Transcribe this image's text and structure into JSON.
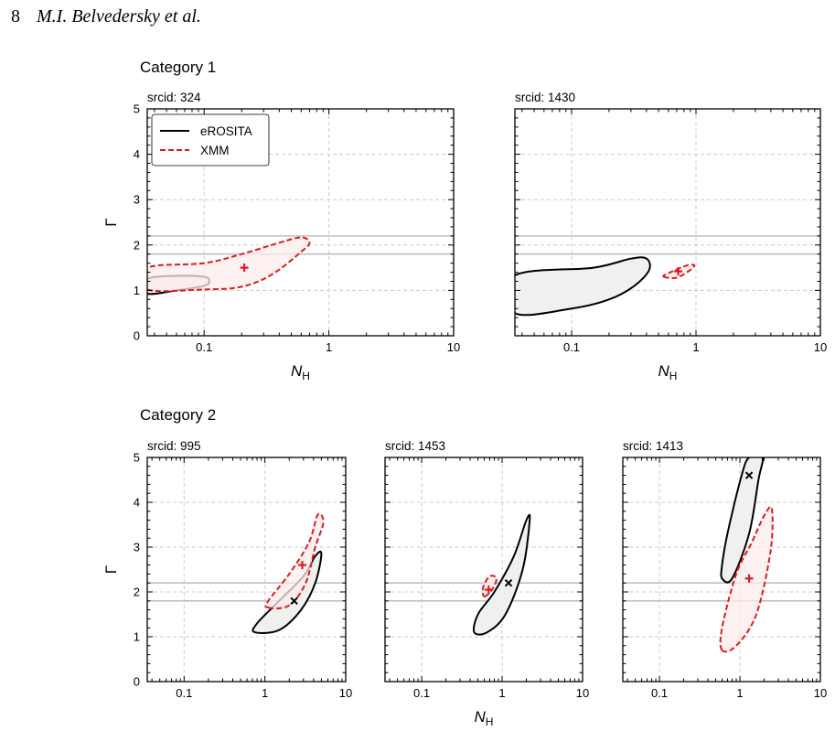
{
  "header": {
    "page_number": "8",
    "authors": "M.I. Belvedersky et al."
  },
  "categories": [
    {
      "title": "Category 1"
    },
    {
      "title": "Category 2"
    }
  ],
  "colors": {
    "erosita": "#000000",
    "erosita_fill": "#f0f0f0",
    "xmm": "#dd1c1c",
    "xmm_fill": "#fdecec",
    "reference_lines": "#c0c0c0",
    "grid": "#cccccc"
  },
  "chart_data": [
    {
      "type": "contour",
      "category": "Category 1",
      "title": "srcid: 324",
      "xlabel": "N",
      "xlabel_sub": "H",
      "ylabel": "Γ",
      "xscale": "log",
      "xlim": [
        0.035,
        10
      ],
      "ylim": [
        0,
        5
      ],
      "xticks": [
        0.1,
        1,
        10
      ],
      "xtick_labels": [
        "0.1",
        "1",
        "10"
      ],
      "yticks": [
        0,
        1,
        2,
        3,
        4,
        5
      ],
      "ytick_labels": [
        "0",
        "1",
        "2",
        "3",
        "4",
        "5"
      ],
      "grid": true,
      "legend": {
        "placement": "top-left",
        "entries": [
          "eROSITA",
          "XMM"
        ]
      },
      "reference_lines_y": [
        1.8,
        2.2
      ],
      "series": [
        {
          "name": "eROSITA",
          "style": "solid",
          "contour": [
            [
              0.035,
              0.93
            ],
            [
              0.06,
              1.0
            ],
            [
              0.1,
              1.1
            ],
            [
              0.11,
              1.2
            ],
            [
              0.1,
              1.3
            ],
            [
              0.06,
              1.32
            ],
            [
              0.035,
              1.25
            ]
          ],
          "best_fit": null
        },
        {
          "name": "XMM",
          "style": "dashed",
          "contour": [
            [
              0.035,
              1.02
            ],
            [
              0.1,
              1.02
            ],
            [
              0.2,
              1.08
            ],
            [
              0.35,
              1.35
            ],
            [
              0.6,
              1.85
            ],
            [
              0.7,
              2.05
            ],
            [
              0.6,
              2.17
            ],
            [
              0.4,
              2.05
            ],
            [
              0.2,
              1.8
            ],
            [
              0.1,
              1.6
            ],
            [
              0.035,
              1.5
            ]
          ],
          "best_fit": [
            0.21,
            1.5
          ]
        }
      ]
    },
    {
      "type": "contour",
      "category": "Category 1",
      "title": "srcid: 1430",
      "xlabel": "N",
      "xlabel_sub": "H",
      "ylabel": "",
      "xscale": "log",
      "xlim": [
        0.035,
        10
      ],
      "ylim": [
        0,
        5
      ],
      "xticks": [
        0.1,
        1,
        10
      ],
      "xtick_labels": [
        "0.1",
        "1",
        "10"
      ],
      "yticks": [
        0,
        1,
        2,
        3,
        4,
        5
      ],
      "ytick_labels": [],
      "grid": true,
      "reference_lines_y": [
        1.8,
        2.2
      ],
      "series": [
        {
          "name": "eROSITA",
          "style": "solid",
          "contour": [
            [
              0.035,
              0.5
            ],
            [
              0.1,
              0.6
            ],
            [
              0.2,
              0.8
            ],
            [
              0.32,
              1.1
            ],
            [
              0.42,
              1.45
            ],
            [
              0.4,
              1.7
            ],
            [
              0.3,
              1.7
            ],
            [
              0.15,
              1.5
            ],
            [
              0.035,
              1.33
            ]
          ],
          "best_fit": null
        },
        {
          "name": "XMM",
          "style": "dashed",
          "contour": [
            [
              0.55,
              1.3
            ],
            [
              0.7,
              1.28
            ],
            [
              0.9,
              1.45
            ],
            [
              0.97,
              1.55
            ],
            [
              0.85,
              1.55
            ],
            [
              0.6,
              1.38
            ]
          ],
          "best_fit": [
            0.72,
            1.42
          ]
        }
      ]
    },
    {
      "type": "contour",
      "category": "Category 2",
      "title": "srcid: 995",
      "xlabel": "",
      "xlabel_sub": "",
      "ylabel": "Γ",
      "xscale": "log",
      "xlim": [
        0.035,
        10
      ],
      "ylim": [
        0,
        5
      ],
      "xticks": [
        0.1,
        1,
        10
      ],
      "xtick_labels": [
        "0.1",
        "1",
        "10"
      ],
      "yticks": [
        0,
        1,
        2,
        3,
        4,
        5
      ],
      "ytick_labels": [
        "0",
        "1",
        "2",
        "3",
        "4",
        "5"
      ],
      "grid": true,
      "reference_lines_y": [
        1.8,
        2.2
      ],
      "series": [
        {
          "name": "eROSITA",
          "style": "solid",
          "contour": [
            [
              0.75,
              1.1
            ],
            [
              1.5,
              1.15
            ],
            [
              2.8,
              1.6
            ],
            [
              4.2,
              2.2
            ],
            [
              5.0,
              2.85
            ],
            [
              4.2,
              2.8
            ],
            [
              3.0,
              2.35
            ],
            [
              1.5,
              1.8
            ],
            [
              0.8,
              1.3
            ]
          ],
          "best_fit": [
            2.3,
            1.8
          ]
        },
        {
          "name": "XMM",
          "style": "dashed",
          "contour": [
            [
              1.1,
              1.65
            ],
            [
              2.0,
              1.7
            ],
            [
              3.2,
              2.2
            ],
            [
              4.2,
              3.0
            ],
            [
              5.3,
              3.55
            ],
            [
              4.5,
              3.72
            ],
            [
              3.5,
              3.1
            ],
            [
              2.0,
              2.4
            ],
            [
              1.1,
              1.8
            ]
          ],
          "best_fit": [
            2.9,
            2.6
          ]
        }
      ]
    },
    {
      "type": "contour",
      "category": "Category 2",
      "title": "srcid: 1453",
      "xlabel": "N",
      "xlabel_sub": "H",
      "ylabel": "",
      "xscale": "log",
      "xlim": [
        0.035,
        10
      ],
      "ylim": [
        0,
        5
      ],
      "xticks": [
        0.1,
        1,
        10
      ],
      "xtick_labels": [
        "0.1",
        "1",
        "10"
      ],
      "yticks": [
        0,
        1,
        2,
        3,
        4,
        5
      ],
      "ytick_labels": [],
      "grid": true,
      "reference_lines_y": [
        1.8,
        2.2
      ],
      "series": [
        {
          "name": "eROSITA",
          "style": "solid",
          "contour": [
            [
              0.45,
              1.1
            ],
            [
              0.65,
              1.1
            ],
            [
              1.1,
              1.5
            ],
            [
              1.8,
              2.5
            ],
            [
              2.2,
              3.6
            ],
            [
              2.0,
              3.6
            ],
            [
              1.4,
              2.8
            ],
            [
              0.8,
              2.0
            ],
            [
              0.5,
              1.5
            ]
          ],
          "best_fit": [
            1.2,
            2.2
          ]
        },
        {
          "name": "XMM",
          "style": "dashed",
          "contour": [
            [
              0.6,
              1.9
            ],
            [
              0.75,
              2.05
            ],
            [
              0.85,
              2.3
            ],
            [
              0.7,
              2.35
            ],
            [
              0.58,
              2.1
            ]
          ],
          "best_fit": [
            0.68,
            2.05
          ]
        }
      ]
    },
    {
      "type": "contour",
      "category": "Category 2",
      "title": "srcid: 1413",
      "xlabel": "",
      "xlabel_sub": "",
      "ylabel": "",
      "xscale": "log",
      "xlim": [
        0.035,
        10
      ],
      "ylim": [
        0,
        5
      ],
      "xticks": [
        0.1,
        1,
        10
      ],
      "xtick_labels": [
        "0.1",
        "1",
        "10"
      ],
      "yticks": [
        0,
        1,
        2,
        3,
        4,
        5
      ],
      "ytick_labels": [],
      "grid": true,
      "reference_lines_y": [
        1.8,
        2.2
      ],
      "series": [
        {
          "name": "eROSITA",
          "style": "solid",
          "contour": [
            [
              0.6,
              2.3
            ],
            [
              0.8,
              2.3
            ],
            [
              1.3,
              3.3
            ],
            [
              1.7,
              4.5
            ],
            [
              1.9,
              5.0
            ],
            [
              1.3,
              5.0
            ],
            [
              1.05,
              4.6
            ],
            [
              0.7,
              3.3
            ],
            [
              0.6,
              2.6
            ]
          ],
          "best_fit": [
            1.3,
            4.6
          ]
        },
        {
          "name": "XMM",
          "style": "dashed",
          "contour": [
            [
              0.6,
              0.7
            ],
            [
              0.9,
              0.8
            ],
            [
              1.6,
              1.5
            ],
            [
              2.4,
              2.9
            ],
            [
              2.5,
              3.85
            ],
            [
              2.0,
              3.7
            ],
            [
              1.4,
              3.1
            ],
            [
              0.9,
              2.4
            ],
            [
              0.6,
              1.2
            ]
          ],
          "best_fit": [
            1.3,
            2.3
          ]
        }
      ]
    }
  ]
}
